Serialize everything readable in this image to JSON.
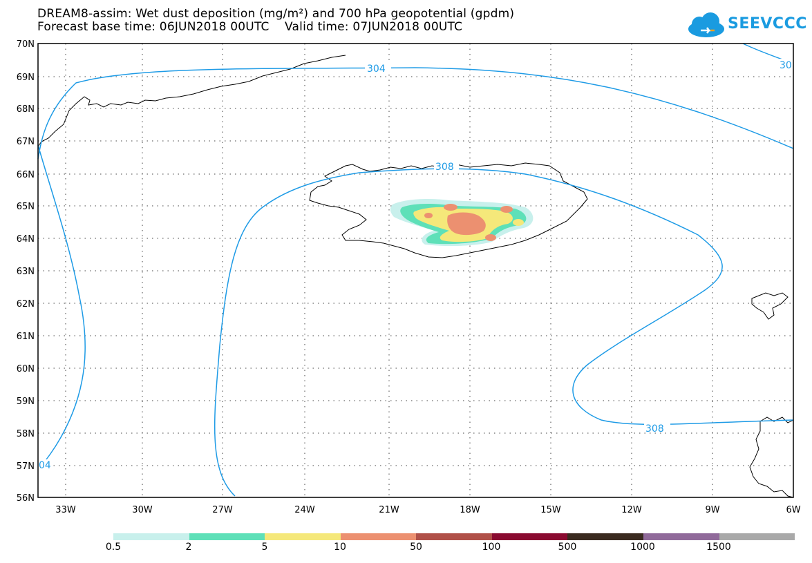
{
  "title": {
    "line1": "DREAM8-assim: Wet dust deposition (mg/m²) and 700 hPa geopotential (gpdm)",
    "line2": "Forecast base time: 06JUN2018 00UTC    Valid time: 07JUN2018 00UTC"
  },
  "logo": {
    "text": "SEEVCCC",
    "icon": "cloud-icon",
    "color": "#1a9be0"
  },
  "axes": {
    "lat_labels": [
      "70N",
      "69N",
      "68N",
      "67N",
      "66N",
      "65N",
      "64N",
      "63N",
      "62N",
      "61N",
      "60N",
      "59N",
      "58N",
      "57N",
      "56N"
    ],
    "lon_labels": [
      "33W",
      "30W",
      "27W",
      "24W",
      "21W",
      "18W",
      "15W",
      "12W",
      "9W",
      "6W"
    ]
  },
  "contours": {
    "color": "#1e9be6",
    "labels": [
      "304",
      "308",
      "308",
      "30",
      "04"
    ]
  },
  "legend": {
    "colors": [
      "#c8f0ec",
      "#5ee0b8",
      "#f5e87a",
      "#ec9070",
      "#b05048",
      "#8a0a30",
      "#3a2a20",
      "#906a9a",
      "#a9a9a9"
    ],
    "labels": [
      "0.5",
      "2",
      "5",
      "10",
      "50",
      "100",
      "500",
      "1000",
      "1500"
    ]
  }
}
